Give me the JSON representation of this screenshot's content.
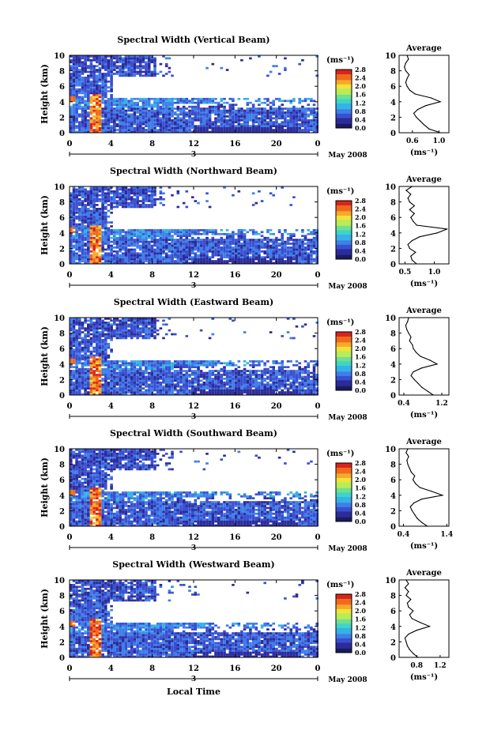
{
  "figure": {
    "xlabel": "Local Time",
    "date_label": "May 2008",
    "day_label": "3",
    "panel_ylabel": "Height (km)",
    "unit_label": "(ms⁻¹)",
    "avg_title": "Average",
    "avg_xlabel": "(ms⁻¹)",
    "colorbar_ticks": [
      "0.0",
      "0.4",
      "0.8",
      "1.2",
      "1.6",
      "2.0",
      "2.4",
      "2.8"
    ],
    "colormap": [
      "#1a1a5e",
      "#2b2b9a",
      "#3a4fd0",
      "#3f7fe8",
      "#36b2e6",
      "#3fd4c8",
      "#6fe090",
      "#b8ec58",
      "#f2e33a",
      "#f7a92a",
      "#f06a1e",
      "#d8241a"
    ]
  },
  "chart_data": [
    {
      "type": "heatmap",
      "title": "Spectral Width (Vertical Beam)",
      "ylabel": "Height (km)",
      "xlabel": "Local Time",
      "x_ticks": [
        "0",
        "4",
        "8",
        "12",
        "16",
        "20",
        "0"
      ],
      "y_ticks": [
        "0",
        "2",
        "4",
        "6",
        "8",
        "10"
      ],
      "xlim": [
        0,
        24
      ],
      "ylim": [
        0,
        10
      ],
      "colorbar": {
        "label": "(ms⁻¹)",
        "ticks": [
          "0.0",
          "0.4",
          "0.8",
          "1.2",
          "1.6",
          "2.0",
          "2.4",
          "2.8"
        ],
        "range": [
          0,
          2.8
        ]
      },
      "avg_profile": {
        "title": "Average",
        "xlabel": "(ms⁻¹)",
        "x_ticks": [
          "0.6",
          "1.0"
        ],
        "xlim": [
          0.4,
          1.15
        ],
        "heights": [
          0,
          0.5,
          1,
          1.5,
          2,
          2.5,
          3,
          3.5,
          4,
          4.5,
          5,
          5.5,
          6,
          6.5,
          7,
          7.5,
          8,
          8.5,
          9,
          9.5,
          10
        ],
        "values": [
          1.02,
          0.85,
          0.78,
          0.72,
          0.66,
          0.62,
          0.68,
          0.8,
          1.02,
          0.88,
          0.64,
          0.56,
          0.52,
          0.5,
          0.52,
          0.55,
          0.5,
          0.48,
          0.5,
          0.54,
          0.52
        ]
      }
    },
    {
      "type": "heatmap",
      "title": "Spectral Width (Northward Beam)",
      "ylabel": "Height (km)",
      "xlabel": "Local Time",
      "x_ticks": [
        "0",
        "4",
        "8",
        "12",
        "16",
        "20",
        "0"
      ],
      "y_ticks": [
        "0",
        "2",
        "4",
        "6",
        "8",
        "10"
      ],
      "xlim": [
        0,
        24
      ],
      "ylim": [
        0,
        10
      ],
      "colorbar": {
        "label": "(ms⁻¹)",
        "ticks": [
          "0.0",
          "0.4",
          "0.8",
          "1.2",
          "1.6",
          "2.0",
          "2.4",
          "2.8"
        ],
        "range": [
          0,
          2.8
        ]
      },
      "avg_profile": {
        "title": "Average",
        "xlabel": "(ms⁻¹)",
        "x_ticks": [
          "0.5",
          "1.0"
        ],
        "xlim": [
          0.4,
          1.25
        ],
        "heights": [
          0,
          0.5,
          1,
          1.5,
          2,
          2.5,
          3,
          3.5,
          4,
          4.5,
          5,
          5.5,
          6,
          6.5,
          7,
          7.5,
          8,
          8.5,
          9,
          9.5,
          10
        ],
        "values": [
          0.7,
          0.62,
          0.6,
          0.68,
          0.58,
          0.55,
          0.62,
          0.75,
          1.05,
          1.22,
          0.7,
          0.64,
          0.6,
          0.66,
          0.58,
          0.66,
          0.58,
          0.55,
          0.6,
          0.52,
          0.62
        ]
      }
    },
    {
      "type": "heatmap",
      "title": "Spectral Width (Eastward Beam)",
      "ylabel": "Height (km)",
      "xlabel": "Local Time",
      "x_ticks": [
        "0",
        "4",
        "8",
        "12",
        "16",
        "20",
        "0"
      ],
      "y_ticks": [
        "0",
        "2",
        "4",
        "6",
        "8",
        "10"
      ],
      "xlim": [
        0,
        24
      ],
      "ylim": [
        0,
        10
      ],
      "colorbar": {
        "label": "(ms⁻¹)",
        "ticks": [
          "0.0",
          "0.4",
          "0.8",
          "1.2",
          "1.6",
          "2.0",
          "2.4",
          "2.8"
        ],
        "range": [
          0,
          2.8
        ]
      },
      "avg_profile": {
        "title": "Average",
        "xlabel": "(ms⁻¹)",
        "x_ticks": [
          "0.4",
          "1.2"
        ],
        "xlim": [
          0.3,
          1.35
        ],
        "heights": [
          0,
          0.5,
          1,
          1.5,
          2,
          2.5,
          3,
          3.5,
          4,
          4.5,
          5,
          5.5,
          6,
          6.5,
          7,
          7.5,
          8,
          8.5,
          9,
          9.5,
          10
        ],
        "values": [
          1.02,
          0.9,
          0.78,
          0.7,
          0.62,
          0.55,
          0.6,
          0.78,
          1.1,
          0.95,
          0.75,
          0.66,
          0.6,
          0.58,
          0.52,
          0.55,
          0.5,
          0.46,
          0.44,
          0.48,
          0.5
        ]
      }
    },
    {
      "type": "heatmap",
      "title": "Spectral Width (Southward Beam)",
      "ylabel": "Height (km)",
      "xlabel": "Local Time",
      "x_ticks": [
        "0",
        "4",
        "8",
        "12",
        "16",
        "20",
        "0"
      ],
      "y_ticks": [
        "0",
        "2",
        "4",
        "6",
        "8",
        "10"
      ],
      "xlim": [
        0,
        24
      ],
      "ylim": [
        0,
        10
      ],
      "colorbar": {
        "label": "(ms⁻¹)",
        "ticks": [
          "0.0",
          "0.4",
          "0.8",
          "1.2",
          "1.6",
          "2.0",
          "2.4",
          "2.8"
        ],
        "range": [
          0,
          2.8
        ]
      },
      "avg_profile": {
        "title": "Average",
        "xlabel": "(ms⁻¹)",
        "x_ticks": [
          "0.4",
          "1.4"
        ],
        "xlim": [
          0.3,
          1.45
        ],
        "heights": [
          0,
          0.5,
          1,
          1.5,
          2,
          2.5,
          3,
          3.5,
          4,
          4.5,
          5,
          5.5,
          6,
          6.5,
          7,
          7.5,
          8,
          8.5,
          9,
          9.5,
          10
        ],
        "values": [
          0.95,
          0.82,
          0.72,
          0.66,
          0.6,
          0.56,
          0.64,
          0.82,
          1.3,
          1.05,
          0.78,
          0.68,
          0.62,
          0.66,
          0.58,
          0.54,
          0.5,
          0.48,
          0.52,
          0.46,
          0.5
        ]
      }
    },
    {
      "type": "heatmap",
      "title": "Spectral Width (Westward Beam)",
      "ylabel": "Height (km)",
      "xlabel": "Local Time",
      "x_ticks": [
        "0",
        "4",
        "8",
        "12",
        "16",
        "20",
        "0"
      ],
      "y_ticks": [
        "0",
        "2",
        "4",
        "6",
        "8",
        "10"
      ],
      "xlim": [
        0,
        24
      ],
      "ylim": [
        0,
        10
      ],
      "colorbar": {
        "label": "(ms⁻¹)",
        "ticks": [
          "0.0",
          "0.4",
          "0.8",
          "1.2",
          "1.6",
          "2.0",
          "2.4",
          "2.8"
        ],
        "range": [
          0,
          2.8
        ]
      },
      "avg_profile": {
        "title": "Average",
        "xlabel": "(ms⁻¹)",
        "x_ticks": [
          "0.8",
          "1.2"
        ],
        "xlim": [
          0.5,
          1.35
        ],
        "heights": [
          0,
          0.5,
          1,
          1.5,
          2,
          2.5,
          3,
          3.5,
          4,
          4.5,
          5,
          5.5,
          6,
          6.5,
          7,
          7.5,
          8,
          8.5,
          9,
          9.5,
          10
        ],
        "values": [
          0.82,
          0.74,
          0.68,
          0.64,
          0.62,
          0.6,
          0.66,
          0.8,
          1.02,
          0.86,
          0.72,
          0.68,
          0.74,
          0.66,
          0.64,
          0.7,
          0.62,
          0.66,
          0.6,
          0.66,
          0.62
        ]
      }
    }
  ]
}
